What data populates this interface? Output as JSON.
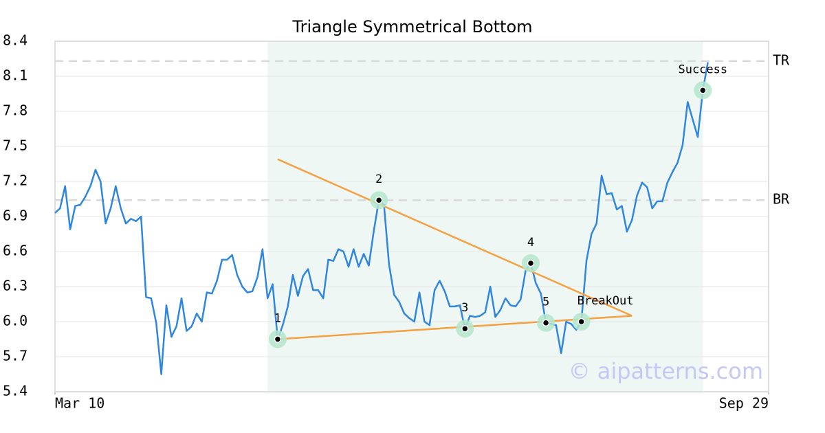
{
  "chart_data": {
    "type": "line",
    "title": "Triangle Symmetrical Bottom",
    "x": [
      0,
      1,
      2,
      3,
      4,
      5,
      6,
      7,
      8,
      9,
      10,
      11,
      12,
      13,
      14,
      15,
      16,
      17,
      18,
      19,
      20,
      21,
      22,
      23,
      24,
      25,
      26,
      27,
      28,
      29,
      30,
      31,
      32,
      33,
      34,
      35,
      36,
      37,
      38,
      39,
      40,
      41,
      42,
      43,
      44,
      45,
      46,
      47,
      48,
      49,
      50,
      51,
      52,
      53,
      54,
      55,
      56,
      57,
      58,
      59,
      60,
      61,
      62,
      63,
      64,
      65,
      66,
      67,
      68,
      69,
      70,
      71,
      72,
      73,
      74,
      75,
      76,
      77,
      78,
      79,
      80,
      81,
      82,
      83,
      84,
      85,
      86,
      87,
      88,
      89,
      90,
      91,
      92,
      93,
      94,
      95,
      96,
      97,
      98,
      99,
      100,
      101,
      102,
      103,
      104,
      105,
      106,
      107,
      108,
      109,
      110,
      111,
      112,
      113,
      114,
      115,
      116,
      117,
      118,
      119,
      120,
      121,
      122,
      123,
      124,
      125,
      126,
      127,
      128,
      129
    ],
    "series": [
      {
        "color": "#2f86e0",
        "values": [
          6.93,
          6.97,
          7.16,
          6.79,
          6.99,
          7.0,
          7.07,
          7.16,
          7.3,
          7.2,
          6.84,
          6.97,
          7.16,
          6.97,
          6.84,
          6.88,
          6.86,
          6.9,
          6.21,
          6.2,
          5.99,
          5.55,
          6.14,
          5.87,
          5.96,
          6.2,
          5.92,
          5.96,
          6.07,
          6.0,
          6.25,
          6.24,
          6.35,
          6.53,
          6.53,
          6.57,
          6.4,
          6.3,
          6.25,
          6.26,
          6.38,
          6.62,
          6.2,
          6.32,
          5.85,
          5.97,
          6.13,
          6.4,
          6.22,
          6.39,
          6.45,
          6.27,
          6.27,
          6.2,
          6.53,
          6.52,
          6.62,
          6.6,
          6.47,
          6.62,
          6.47,
          6.58,
          6.48,
          6.78,
          7.04,
          7.0,
          6.49,
          6.23,
          6.17,
          6.07,
          6.03,
          6.0,
          6.25,
          6.0,
          5.97,
          6.27,
          6.35,
          6.26,
          6.13,
          6.13,
          6.14,
          5.94,
          6.05,
          6.04,
          6.05,
          6.08,
          6.3,
          6.04,
          6.1,
          6.2,
          6.14,
          6.13,
          6.19,
          6.44,
          6.5,
          6.33,
          6.24,
          5.99,
          5.98,
          5.97,
          5.73,
          6.0,
          5.98,
          5.93,
          6.0,
          6.52,
          6.75,
          6.84,
          7.25,
          7.09,
          7.1,
          6.96,
          6.99,
          6.77,
          6.87,
          7.08,
          7.19,
          7.15,
          6.97,
          7.03,
          7.03,
          7.19,
          7.28,
          7.36,
          7.51,
          7.88,
          7.73,
          7.58,
          7.98,
          8.22
        ]
      }
    ],
    "xlim": [
      0,
      141
    ],
    "xticks": [
      {
        "value": 0,
        "label": "Mar 10"
      },
      {
        "value": 141,
        "label": "Sep 29"
      }
    ],
    "ylim": [
      5.4,
      8.4
    ],
    "yticks": [
      5.4,
      5.7,
      {
        "value": 6,
        "label": "6.0"
      },
      6.3,
      6.6,
      6.9,
      7.2,
      7.5,
      7.8,
      8.1,
      8.4
    ],
    "grid": true,
    "shaded_range": {
      "x": [
        42,
        128
      ],
      "color": "#eef7f3"
    },
    "hlines": [
      {
        "value": 8.23,
        "label": "TR"
      },
      {
        "value": 7.04,
        "label": "BR"
      }
    ],
    "trendlines": [
      {
        "color": "#f5a142",
        "x": [
          44,
          114
        ],
        "y": [
          7.39,
          6.05
        ]
      },
      {
        "color": "#f5a142",
        "x": [
          44,
          114
        ],
        "y": [
          5.85,
          6.05
        ]
      }
    ],
    "annotations": [
      {
        "x": 44,
        "y": 5.85,
        "label": "1"
      },
      {
        "x": 64,
        "y": 7.04,
        "label": "2"
      },
      {
        "x": 81,
        "y": 5.94,
        "label": "3"
      },
      {
        "x": 94,
        "y": 6.5,
        "label": "4"
      },
      {
        "x": 97,
        "y": 5.99,
        "label": "5"
      },
      {
        "x": 104,
        "y": 6.0,
        "label": "BreakOut"
      },
      {
        "x": 128,
        "y": 7.98,
        "label": "Success"
      }
    ],
    "watermark": "© aipatterns.com"
  }
}
